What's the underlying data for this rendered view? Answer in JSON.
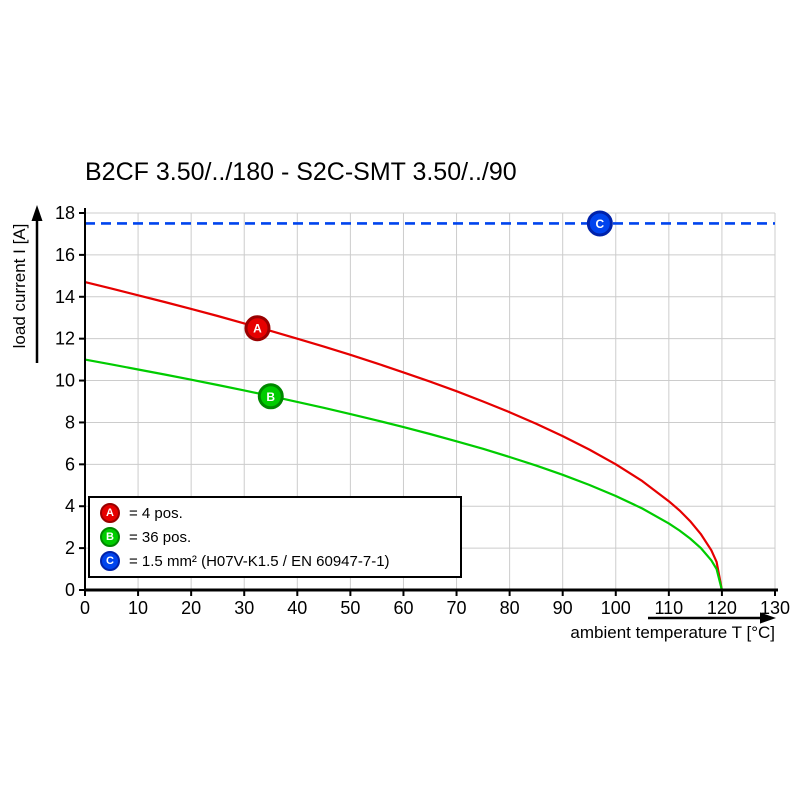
{
  "chart_data": {
    "type": "line",
    "title": "B2CF 3.50/../180 - S2C-SMT 3.50/../90",
    "xlabel": "ambient temperature T [°C]",
    "ylabel": "load current I [A]",
    "xlim": [
      0,
      130
    ],
    "ylim": [
      0,
      18
    ],
    "x_ticks": [
      0,
      10,
      20,
      30,
      40,
      50,
      60,
      70,
      80,
      90,
      100,
      110,
      120,
      130
    ],
    "y_ticks": [
      0,
      2,
      4,
      6,
      8,
      10,
      12,
      14,
      16,
      18
    ],
    "grid": true,
    "grid_color": "#cccccc",
    "axis_color": "#000000",
    "legend_position": "bottom-left",
    "series": [
      {
        "name": "A",
        "kind": "curve",
        "color": "#e60000",
        "border": "#990000",
        "legend_text": "= 4 pos.",
        "marker_at": [
          32.5,
          12.5
        ],
        "points": [
          [
            0,
            14.7
          ],
          [
            5,
            14.39
          ],
          [
            10,
            14.07
          ],
          [
            15,
            13.75
          ],
          [
            20,
            13.42
          ],
          [
            25,
            13.08
          ],
          [
            30,
            12.73
          ],
          [
            35,
            12.37
          ],
          [
            40,
            12.0
          ],
          [
            45,
            11.62
          ],
          [
            50,
            11.23
          ],
          [
            55,
            10.82
          ],
          [
            60,
            10.39
          ],
          [
            65,
            9.95
          ],
          [
            70,
            9.49
          ],
          [
            75,
            9.0
          ],
          [
            80,
            8.49
          ],
          [
            85,
            7.94
          ],
          [
            90,
            7.35
          ],
          [
            95,
            6.71
          ],
          [
            100,
            6.0
          ],
          [
            105,
            5.2
          ],
          [
            110,
            4.24
          ],
          [
            112,
            3.8
          ],
          [
            114,
            3.29
          ],
          [
            116,
            2.68
          ],
          [
            118,
            1.9
          ],
          [
            119,
            1.34
          ],
          [
            120,
            0
          ]
        ]
      },
      {
        "name": "B",
        "kind": "curve",
        "color": "#00cc00",
        "border": "#008800",
        "legend_text": "= 36 pos.",
        "marker_at": [
          35,
          9.25
        ],
        "points": [
          [
            0,
            11.0
          ],
          [
            5,
            10.77
          ],
          [
            10,
            10.53
          ],
          [
            15,
            10.29
          ],
          [
            20,
            10.04
          ],
          [
            25,
            9.79
          ],
          [
            30,
            9.53
          ],
          [
            35,
            9.26
          ],
          [
            40,
            8.98
          ],
          [
            45,
            8.7
          ],
          [
            50,
            8.4
          ],
          [
            55,
            8.1
          ],
          [
            60,
            7.78
          ],
          [
            65,
            7.45
          ],
          [
            70,
            7.1
          ],
          [
            75,
            6.74
          ],
          [
            80,
            6.35
          ],
          [
            85,
            5.94
          ],
          [
            90,
            5.5
          ],
          [
            95,
            5.02
          ],
          [
            100,
            4.49
          ],
          [
            105,
            3.89
          ],
          [
            110,
            3.18
          ],
          [
            112,
            2.84
          ],
          [
            114,
            2.46
          ],
          [
            116,
            2.01
          ],
          [
            118,
            1.42
          ],
          [
            119,
            1.0
          ],
          [
            120,
            0
          ]
        ]
      },
      {
        "name": "C",
        "kind": "hline",
        "color": "#0044ee",
        "border": "#0022aa",
        "legend_text": "= 1.5 mm² (H07V-K1.5 / EN 60947-7-1)",
        "value": 17.5,
        "dashed": true,
        "marker_at": [
          97,
          17.5
        ]
      }
    ]
  }
}
